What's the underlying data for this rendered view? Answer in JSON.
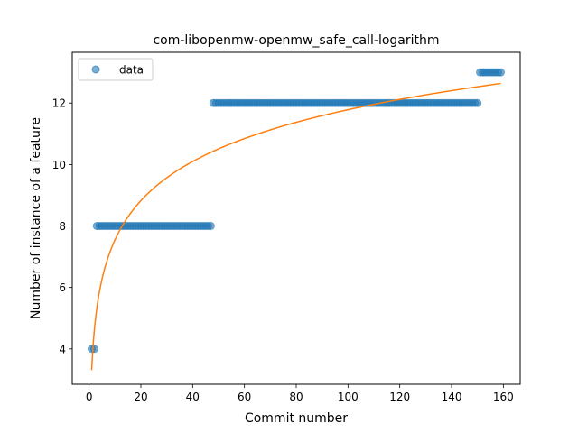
{
  "chart_data": {
    "type": "scatter",
    "title": "com-libopenmw-openmw_safe_call-logarithm",
    "xlabel": "Commit number",
    "ylabel": "Number of instance of a feature",
    "xlim": [
      -6.5,
      166.5
    ],
    "ylim": [
      2.85,
      13.65
    ],
    "xticks": [
      0,
      20,
      40,
      60,
      80,
      100,
      120,
      140,
      160
    ],
    "yticks": [
      4,
      6,
      8,
      10,
      12
    ],
    "legend": {
      "position": "top-left",
      "entries": [
        "data"
      ]
    },
    "series": [
      {
        "name": "data",
        "kind": "points",
        "color": "#1f77b4",
        "segments": [
          {
            "x_from": 1,
            "x_to": 2,
            "y": 4
          },
          {
            "x_from": 3,
            "x_to": 47,
            "y": 8
          },
          {
            "x_from": 48,
            "x_to": 150,
            "y": 12
          },
          {
            "x_from": 151,
            "x_to": 159,
            "y": 13
          }
        ]
      },
      {
        "name": "",
        "kind": "fit",
        "color": "#ff7f0e",
        "model": "a + b*ln(x)",
        "a": 3.31,
        "b": 1.84,
        "x_range": [
          1,
          159
        ]
      }
    ]
  }
}
